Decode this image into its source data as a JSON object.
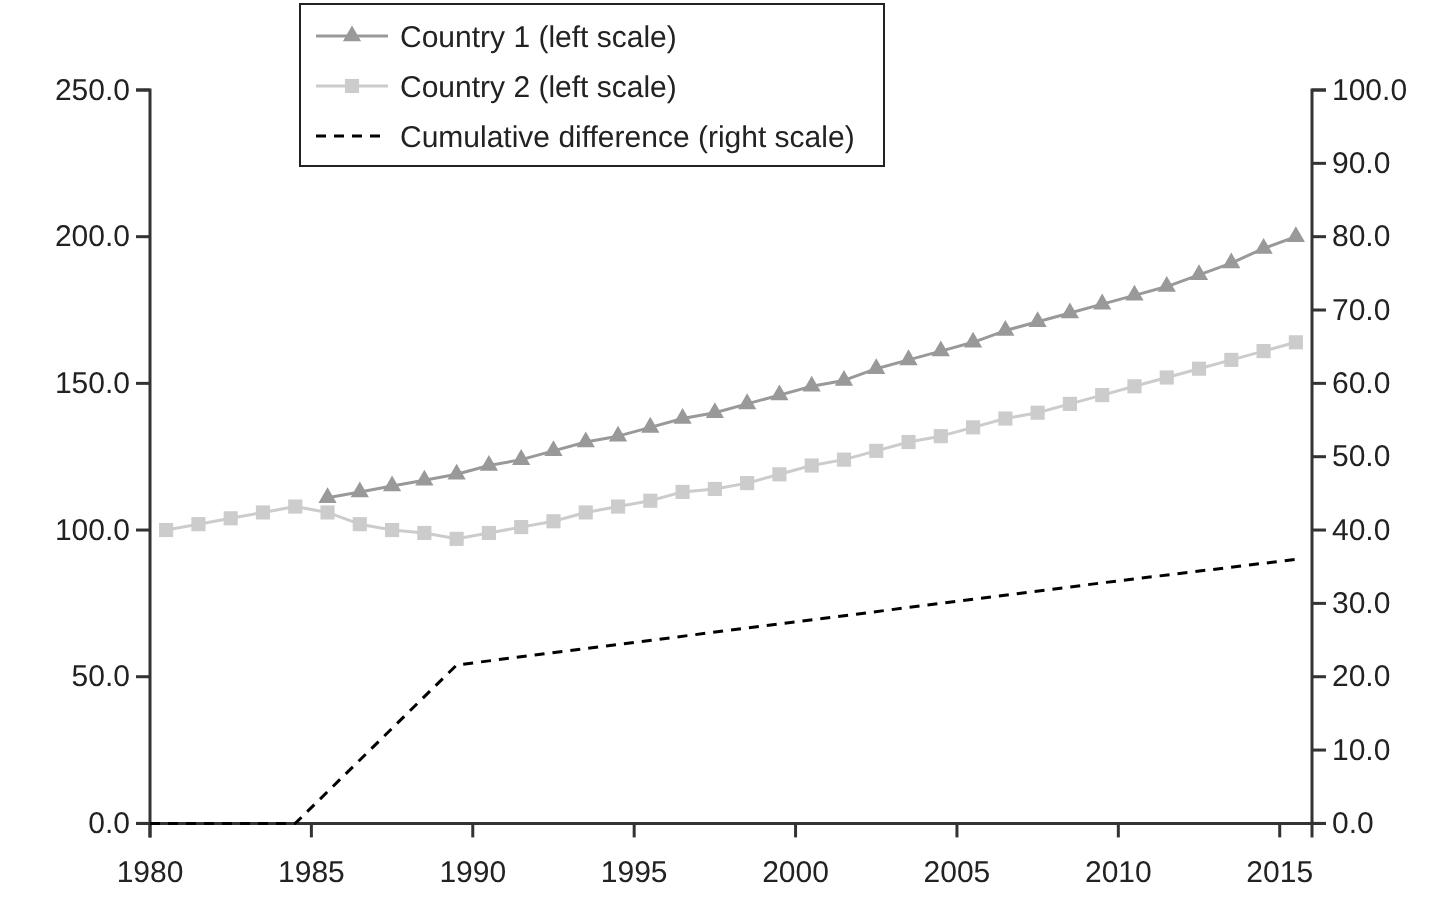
{
  "chart_data": {
    "type": "line",
    "xlim": [
      1980,
      2016
    ],
    "xticks": [
      1980,
      1985,
      1990,
      1995,
      2000,
      2005,
      2010,
      2015
    ],
    "ylim": [
      0,
      250
    ],
    "yticks": [
      {
        "value": 0,
        "label": "0.0"
      },
      {
        "value": 50,
        "label": "50.0"
      },
      {
        "value": 100,
        "label": "100.0"
      },
      {
        "value": 150,
        "label": "150.0"
      },
      {
        "value": 200,
        "label": "200.0"
      },
      {
        "value": 250,
        "label": "250.0"
      }
    ],
    "y2lim": [
      0,
      100
    ],
    "y2ticks": [
      {
        "value": 0,
        "label": "0.0"
      },
      {
        "value": 10,
        "label": "10.0"
      },
      {
        "value": 20,
        "label": "20.0"
      },
      {
        "value": 30,
        "label": "30.0"
      },
      {
        "value": 40,
        "label": "40.0"
      },
      {
        "value": 50,
        "label": "50.0"
      },
      {
        "value": 60,
        "label": "60.0"
      },
      {
        "value": 70,
        "label": "70.0"
      },
      {
        "value": 80,
        "label": "80.0"
      },
      {
        "value": 90,
        "label": "90.0"
      },
      {
        "value": 100,
        "label": "100.0"
      }
    ],
    "grid": false,
    "legend": "top",
    "series": [
      {
        "name": "Country 1 (left scale)",
        "color": "#999999",
        "marker": "triangle",
        "line_style": "solid",
        "x": [
          1985.5,
          1986.5,
          1987.5,
          1988.5,
          1989.5,
          1990.5,
          1991.5,
          1992.5,
          1993.5,
          1994.5,
          1995.5,
          1996.5,
          1997.5,
          1998.5,
          1999.5,
          2000.5,
          2001.5,
          2002.5,
          2003.5,
          2004.5,
          2005.5,
          2006.5,
          2007.5,
          2008.5,
          2009.5,
          2010.5,
          2011.5,
          2012.5,
          2013.5,
          2014.5,
          2015.5
        ],
        "values": [
          111,
          113,
          115,
          117,
          119,
          122,
          124,
          127,
          130,
          132,
          135,
          138,
          140,
          143,
          146,
          149,
          151,
          155,
          158,
          161,
          164,
          168,
          171,
          174,
          177,
          180,
          183,
          187,
          191,
          196,
          200
        ]
      },
      {
        "name": "Country 2 (left scale)",
        "color": "#cccccc",
        "marker": "square",
        "line_style": "solid",
        "x": [
          1980.5,
          1981.5,
          1982.5,
          1983.5,
          1984.5,
          1985.5,
          1986.5,
          1987.5,
          1988.5,
          1989.5,
          1990.5,
          1991.5,
          1992.5,
          1993.5,
          1994.5,
          1995.5,
          1996.5,
          1997.5,
          1998.5,
          1999.5,
          2000.5,
          2001.5,
          2002.5,
          2003.5,
          2004.5,
          2005.5,
          2006.5,
          2007.5,
          2008.5,
          2009.5,
          2010.5,
          2011.5,
          2012.5,
          2013.5,
          2014.5,
          2015.5
        ],
        "values": [
          100,
          102,
          104,
          106,
          108,
          106,
          102,
          100,
          99,
          97,
          99,
          101,
          103,
          106,
          108,
          110,
          113,
          114,
          116,
          119,
          122,
          124,
          127,
          130,
          132,
          135,
          138,
          140,
          143,
          146,
          149,
          152,
          155,
          158,
          161,
          164
        ]
      },
      {
        "name": "Cumulative difference (right scale)",
        "color": "#000000",
        "axis": "y2",
        "marker": "none",
        "line_style": "dashed",
        "x": [
          1980,
          1984.5,
          1989.5,
          1994.5,
          1999.5,
          2004.5,
          2009.5,
          2015.5
        ],
        "values": [
          0,
          0,
          21.6,
          24.4,
          27.2,
          30,
          32.8,
          36
        ]
      }
    ]
  }
}
